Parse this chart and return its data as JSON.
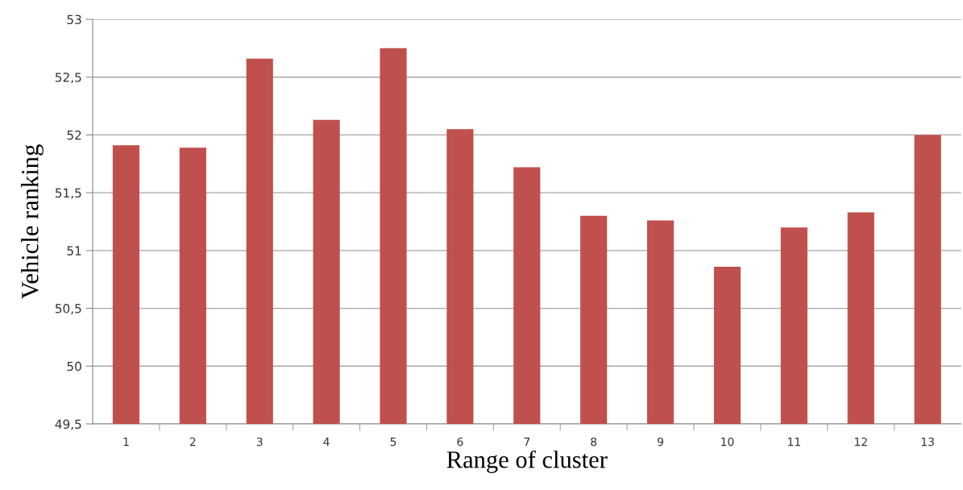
{
  "chart_data": {
    "type": "bar",
    "xlabel": "Range of cluster",
    "ylabel": "Vehicle ranking",
    "categories": [
      "1",
      "2",
      "3",
      "4",
      "5",
      "6",
      "7",
      "8",
      "9",
      "10",
      "11",
      "12",
      "13"
    ],
    "values": [
      51.91,
      51.89,
      52.66,
      52.13,
      52.75,
      52.05,
      51.72,
      51.3,
      51.26,
      50.86,
      51.2,
      51.33,
      52.0
    ],
    "color": "#c0504d",
    "ylim": [
      49.5,
      53
    ],
    "yticks": [
      {
        "value": 49.5,
        "label": "49,5"
      },
      50,
      {
        "value": 50.5,
        "label": "50,5"
      },
      51,
      {
        "value": 51.5,
        "label": "51,5"
      },
      52,
      {
        "value": 52.5,
        "label": "52,5"
      },
      53
    ],
    "grid": "y"
  }
}
